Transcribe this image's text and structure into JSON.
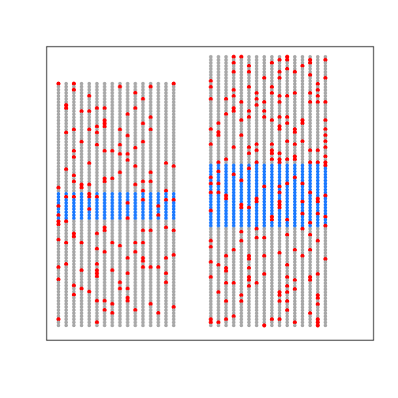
{
  "chart_data": {
    "type": "scatter",
    "title": "",
    "xlabel": "",
    "ylabel": "",
    "axes_visible": false,
    "grid": false,
    "frame": true,
    "colors": {
      "background": "#ffffff",
      "frame": "#000000",
      "dot_default": "#a9a9a9",
      "dot_band": "#1e7bff",
      "dot_highlight": "#ff0000"
    },
    "groups": [
      {
        "columns": 16,
        "rows": 80,
        "band_rows": [
          36,
          44
        ],
        "highlight_count": 140,
        "seed": 11
      },
      {
        "columns": 16,
        "rows": 90,
        "band_rows": [
          36,
          56
        ],
        "highlight_count": 210,
        "seed": 29
      }
    ]
  }
}
